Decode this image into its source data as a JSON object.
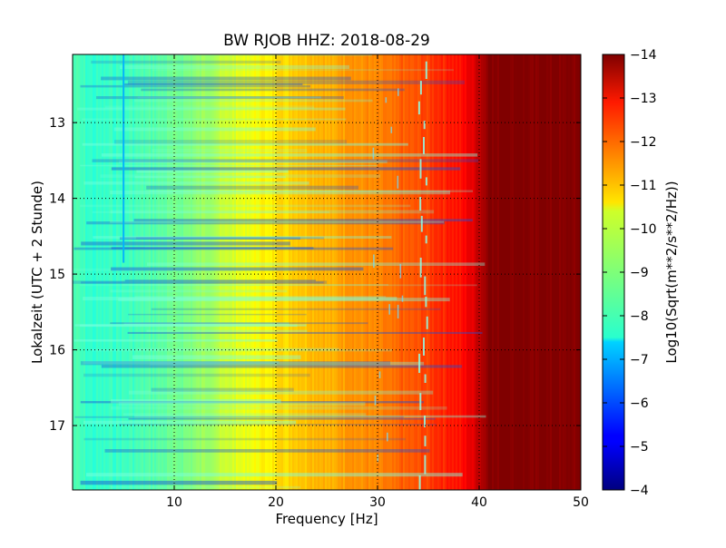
{
  "chart_data": {
    "type": "heatmap",
    "title": "BW RJOB HHZ: 2018-08-29",
    "xlabel": "Frequency [Hz]",
    "ylabel": "Lokalzeit (UTC + 2 Stunde)",
    "xlim": [
      0,
      50
    ],
    "ylim": [
      12.1,
      17.85
    ],
    "y_inverted": true,
    "grid": true,
    "x_ticks": [
      10,
      20,
      30,
      40,
      50
    ],
    "y_ticks": [
      13,
      14,
      15,
      16,
      17
    ],
    "colorbar": {
      "label": "Log10(Sqrt(m**2/s**2/Hz))",
      "range": [
        -14,
        -4
      ],
      "ticks": [
        -4,
        -5,
        -6,
        -7,
        -8,
        -9,
        -10,
        -11,
        -12,
        -13,
        -14
      ],
      "colormap": "jet"
    },
    "frequency_profile": {
      "frequency_hz": [
        0,
        2,
        4,
        6,
        8,
        10,
        12,
        14,
        16,
        18,
        20,
        22,
        24,
        26,
        28,
        30,
        32,
        34,
        36,
        38,
        39,
        40,
        40.5,
        41,
        42,
        45,
        50
      ],
      "log10_amplitude": [
        -8.5,
        -8.2,
        -8.3,
        -8.4,
        -8.6,
        -8.8,
        -9.1,
        -9.5,
        -9.9,
        -10.2,
        -10.5,
        -10.7,
        -10.9,
        -11.1,
        -11.3,
        -11.5,
        -11.8,
        -12.0,
        -12.3,
        -12.6,
        -12.9,
        -13.3,
        -13.6,
        -13.9,
        -14.0,
        -14.0,
        -14.0
      ]
    },
    "features": {
      "narrowband_line_hz": 5.0,
      "narrowband_line_time": [
        12.1,
        14.85
      ],
      "narrowband_line_level": -7.0
    }
  }
}
